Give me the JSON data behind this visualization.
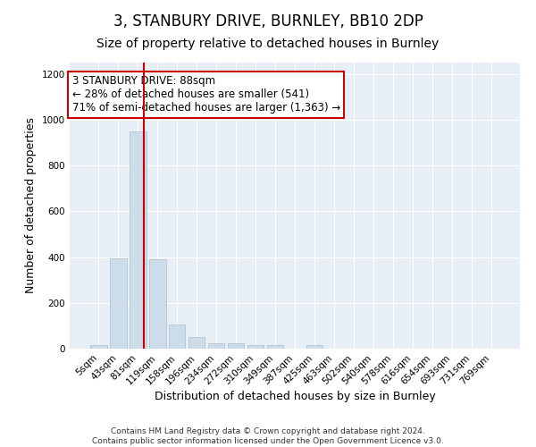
{
  "title": "3, STANBURY DRIVE, BURNLEY, BB10 2DP",
  "subtitle": "Size of property relative to detached houses in Burnley",
  "xlabel": "Distribution of detached houses by size in Burnley",
  "ylabel": "Number of detached properties",
  "footer1": "Contains HM Land Registry data © Crown copyright and database right 2024.",
  "footer2": "Contains public sector information licensed under the Open Government Licence v3.0.",
  "categories": [
    "5sqm",
    "43sqm",
    "81sqm",
    "119sqm",
    "158sqm",
    "196sqm",
    "234sqm",
    "272sqm",
    "310sqm",
    "349sqm",
    "387sqm",
    "425sqm",
    "463sqm",
    "502sqm",
    "540sqm",
    "578sqm",
    "616sqm",
    "654sqm",
    "693sqm",
    "731sqm",
    "769sqm"
  ],
  "values": [
    15,
    395,
    950,
    390,
    105,
    52,
    25,
    25,
    15,
    15,
    0,
    15,
    0,
    0,
    0,
    0,
    0,
    0,
    0,
    0,
    0
  ],
  "bar_color": "#ccdce8",
  "bar_edge_color": "#aabccc",
  "bar_width": 0.85,
  "ylim": [
    0,
    1250
  ],
  "yticks": [
    0,
    200,
    400,
    600,
    800,
    1000,
    1200
  ],
  "red_line_x": 2.33,
  "annotation_text": "3 STANBURY DRIVE: 88sqm\n← 28% of detached houses are smaller (541)\n71% of semi-detached houses are larger (1,363) →",
  "annotation_box_color": "#ffffff",
  "annotation_box_edge": "#cc0000",
  "fig_bg_color": "#ffffff",
  "plot_bg_color": "#e8eef5",
  "title_fontsize": 12,
  "subtitle_fontsize": 10,
  "axis_label_fontsize": 9,
  "tick_fontsize": 7.5,
  "annot_fontsize": 8.5,
  "footer_fontsize": 6.5
}
